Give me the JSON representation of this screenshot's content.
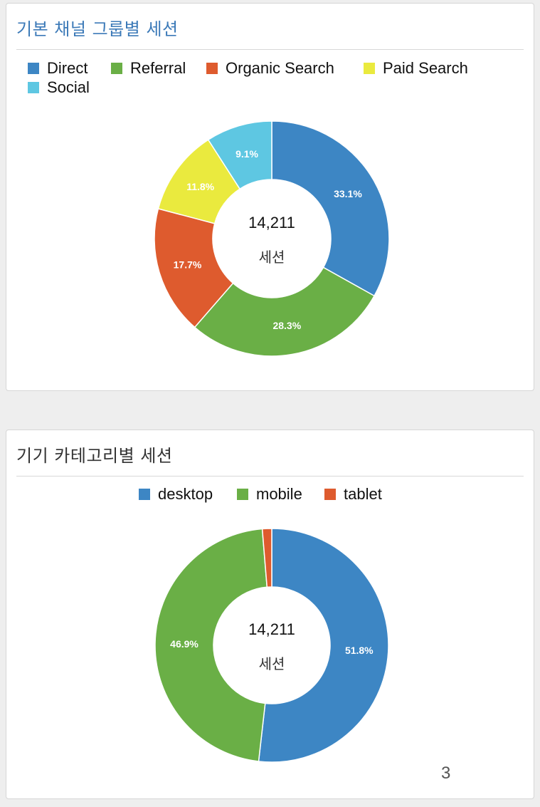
{
  "chart_data": [
    {
      "type": "pie",
      "title": "기본 채널 그룹별 세션",
      "center_total": "14,211",
      "center_unit": "세션",
      "legend_position": "top-left",
      "series": [
        {
          "name": "Direct",
          "value": 33.1,
          "label": "33.1%",
          "color": "#3d86c4"
        },
        {
          "name": "Referral",
          "value": 28.3,
          "label": "28.3%",
          "color": "#6aaf46"
        },
        {
          "name": "Organic Search",
          "value": 17.7,
          "label": "17.7%",
          "color": "#de5b2e"
        },
        {
          "name": "Paid Search",
          "value": 11.8,
          "label": "11.8%",
          "color": "#eaea3e"
        },
        {
          "name": "Social",
          "value": 9.1,
          "label": "9.1%",
          "color": "#5ec7e2"
        }
      ]
    },
    {
      "type": "pie",
      "title": "기기 카테고리별 세션",
      "center_total": "14,211",
      "center_unit": "세션",
      "legend_position": "top-center",
      "series": [
        {
          "name": "desktop",
          "value": 51.8,
          "label": "51.8%",
          "color": "#3d86c4"
        },
        {
          "name": "mobile",
          "value": 46.9,
          "label": "46.9%",
          "color": "#6aaf46"
        },
        {
          "name": "tablet",
          "value": 1.3,
          "label": "",
          "color": "#de5b2e"
        }
      ]
    }
  ],
  "page_number": "3"
}
